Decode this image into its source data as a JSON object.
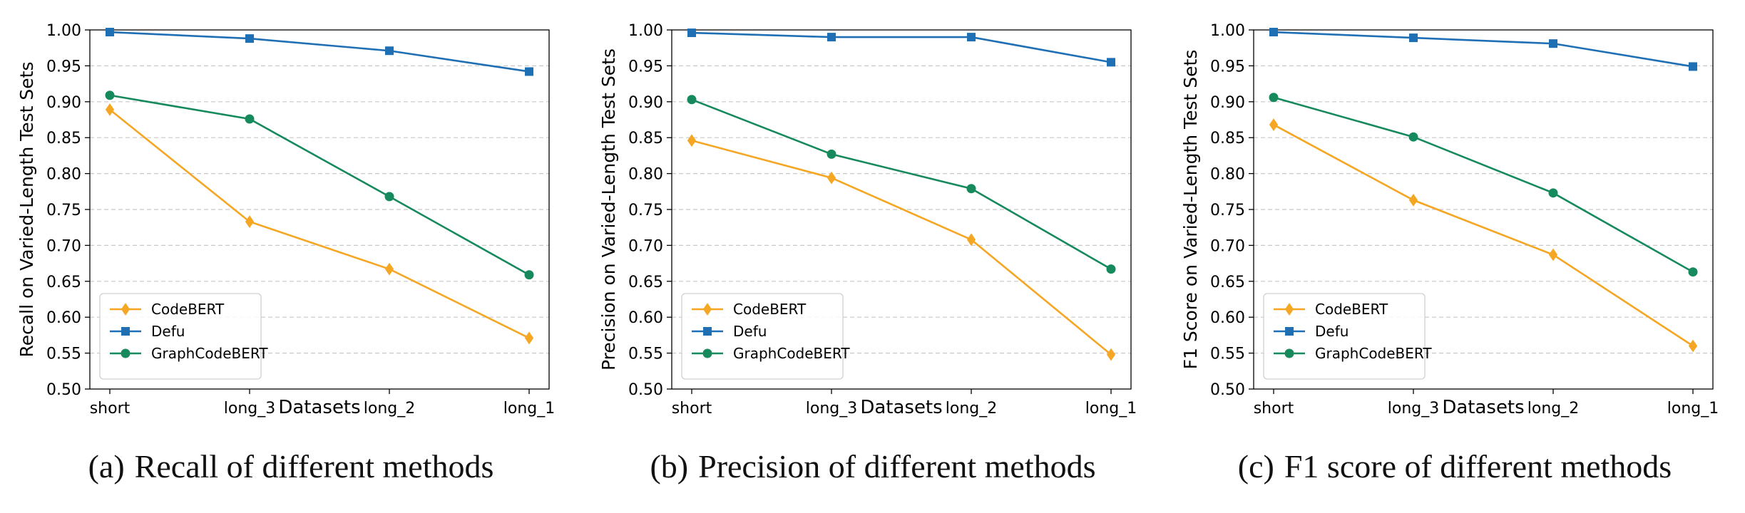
{
  "chart_data": [
    {
      "type": "line",
      "categories": [
        "short",
        "long_3",
        "long_2",
        "long_1"
      ],
      "xlabel": "Datasets",
      "ylabel": "Recall on Varied-Length Test Sets",
      "ylim": [
        0.5,
        1.0
      ],
      "yticks": [
        "0.50",
        "0.55",
        "0.60",
        "0.65",
        "0.70",
        "0.75",
        "0.80",
        "0.85",
        "0.90",
        "0.95",
        "1.00"
      ],
      "grid": "horizontal dashed",
      "legend": "lower left",
      "series": [
        {
          "name": "CodeBERT",
          "values": [
            0.889,
            0.733,
            0.667,
            0.571
          ],
          "color": "#f5a623",
          "marker": "diamond"
        },
        {
          "name": "Defu",
          "values": [
            0.997,
            0.988,
            0.971,
            0.942
          ],
          "color": "#1f6fb4",
          "marker": "square"
        },
        {
          "name": "GraphCodeBERT",
          "values": [
            0.909,
            0.876,
            0.768,
            0.659
          ],
          "color": "#168a5c",
          "marker": "circle"
        }
      ],
      "caption_tag": "(a)",
      "caption": "Recall of different methods"
    },
    {
      "type": "line",
      "categories": [
        "short",
        "long_3",
        "long_2",
        "long_1"
      ],
      "xlabel": "Datasets",
      "ylabel": "Precision on Varied-Length Test Sets",
      "ylim": [
        0.5,
        1.0
      ],
      "yticks": [
        "0.50",
        "0.55",
        "0.60",
        "0.65",
        "0.70",
        "0.75",
        "0.80",
        "0.85",
        "0.90",
        "0.95",
        "1.00"
      ],
      "grid": "horizontal dashed",
      "legend": "lower left",
      "series": [
        {
          "name": "CodeBERT",
          "values": [
            0.846,
            0.794,
            0.708,
            0.548
          ],
          "color": "#f5a623",
          "marker": "diamond"
        },
        {
          "name": "Defu",
          "values": [
            0.996,
            0.99,
            0.99,
            0.955
          ],
          "color": "#1f6fb4",
          "marker": "square"
        },
        {
          "name": "GraphCodeBERT",
          "values": [
            0.903,
            0.827,
            0.779,
            0.667
          ],
          "color": "#168a5c",
          "marker": "circle"
        }
      ],
      "caption_tag": "(b)",
      "caption": "Precision of different methods"
    },
    {
      "type": "line",
      "categories": [
        "short",
        "long_3",
        "long_2",
        "long_1"
      ],
      "xlabel": "Datasets",
      "ylabel": "F1 Score on Varied-Length Test Sets",
      "ylim": [
        0.5,
        1.0
      ],
      "yticks": [
        "0.50",
        "0.55",
        "0.60",
        "0.65",
        "0.70",
        "0.75",
        "0.80",
        "0.85",
        "0.90",
        "0.95",
        "1.00"
      ],
      "grid": "horizontal dashed",
      "legend": "lower left",
      "series": [
        {
          "name": "CodeBERT",
          "values": [
            0.868,
            0.763,
            0.687,
            0.56
          ],
          "color": "#f5a623",
          "marker": "diamond"
        },
        {
          "name": "Defu",
          "values": [
            0.997,
            0.989,
            0.981,
            0.949
          ],
          "color": "#1f6fb4",
          "marker": "square"
        },
        {
          "name": "GraphCodeBERT",
          "values": [
            0.906,
            0.851,
            0.773,
            0.663
          ],
          "color": "#168a5c",
          "marker": "circle"
        }
      ],
      "caption_tag": "(c)",
      "caption": "F1 score of different methods"
    }
  ]
}
